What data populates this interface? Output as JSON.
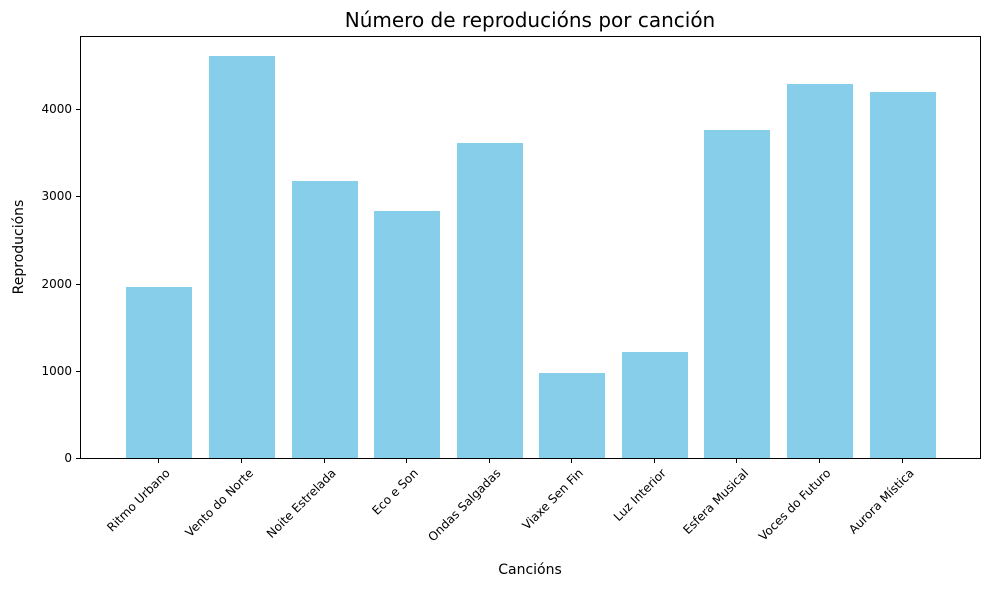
{
  "chart_data": {
    "type": "bar",
    "title": "Número de reproducións por canción",
    "xlabel": "Cancións",
    "ylabel": "Reproducións",
    "categories": [
      "Ritmo Urbano",
      "Vento do Norte",
      "Noite Estrelada",
      "Eco e Son",
      "Ondas Salgadas",
      "Viaxe Sen Fin",
      "Luz Interior",
      "Esfera Musical",
      "Voces do Futuro",
      "Aurora Mística"
    ],
    "values": [
      1965,
      4605,
      3180,
      2835,
      3615,
      970,
      1220,
      3755,
      4290,
      4195
    ],
    "ylim": [
      0,
      4837
    ],
    "yticks": [
      "0",
      "1000",
      "2000",
      "3000",
      "4000"
    ],
    "ytick_values": [
      0,
      1000,
      2000,
      3000,
      4000
    ],
    "grid": false,
    "legend": null,
    "bar_color": "#87ceeb",
    "xtick_rotation": 45
  }
}
